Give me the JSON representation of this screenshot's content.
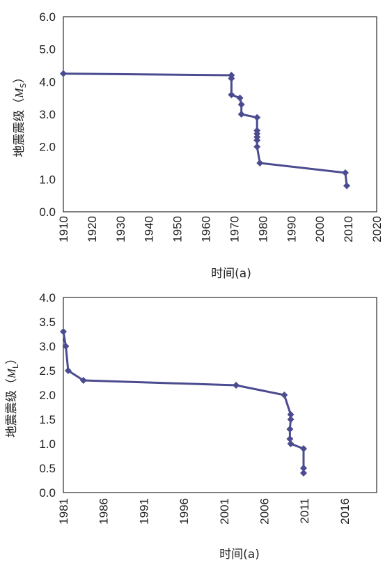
{
  "chart_data": [
    {
      "type": "line",
      "xlim": [
        1910,
        2020
      ],
      "ylim": [
        0,
        6
      ],
      "x_ticks": [
        "1910",
        "1920",
        "1930",
        "1940",
        "1950",
        "1960",
        "1970",
        "1980",
        "1990",
        "2000",
        "2010",
        "2020"
      ],
      "y_ticks": [
        "0.0",
        "1.0",
        "2.0",
        "3.0",
        "4.0",
        "5.0",
        "6.0"
      ],
      "xlabel": "时间(a)",
      "ylabel_prefix": "地震震级（",
      "ylabel_symbol": "M",
      "ylabel_sub": "S",
      "ylabel_suffix": "）",
      "marker": "diamond",
      "color": "#4b4b8f",
      "points": [
        [
          1910,
          4.25
        ],
        [
          1969,
          4.2
        ],
        [
          1969,
          4.1
        ],
        [
          1969,
          3.6
        ],
        [
          1972,
          3.5
        ],
        [
          1972.5,
          3.3
        ],
        [
          1972.5,
          3.0
        ],
        [
          1978,
          2.9
        ],
        [
          1978,
          2.5
        ],
        [
          1978,
          2.4
        ],
        [
          1978,
          2.3
        ],
        [
          1978,
          2.2
        ],
        [
          1978,
          2.0
        ],
        [
          1979,
          1.5
        ],
        [
          2009,
          1.2
        ],
        [
          2009.5,
          0.8
        ]
      ]
    },
    {
      "type": "line",
      "xlim": [
        1981,
        2020
      ],
      "ylim": [
        0,
        4
      ],
      "x_ticks": [
        "1981",
        "1986",
        "1991",
        "1996",
        "2001",
        "2006",
        "2011",
        "2016"
      ],
      "x_tick_values": [
        1981,
        1986,
        1991,
        1996,
        2001,
        2006,
        2011,
        2016
      ],
      "y_ticks": [
        "0.0",
        "0.5",
        "1.0",
        "1.5",
        "2.0",
        "2.5",
        "3.0",
        "3.5",
        "4.0"
      ],
      "xlabel": "时间(a)",
      "ylabel_prefix": "地震震级（",
      "ylabel_symbol": "M",
      "ylabel_sub": "L",
      "ylabel_suffix": "）",
      "marker": "diamond",
      "color": "#4b4b8f",
      "points": [
        [
          1981,
          3.3
        ],
        [
          1981.3,
          3.0
        ],
        [
          1981.6,
          2.5
        ],
        [
          1983.5,
          2.3
        ],
        [
          2002.5,
          2.2
        ],
        [
          2008.5,
          2.0
        ],
        [
          2009.3,
          1.6
        ],
        [
          2009.3,
          1.5
        ],
        [
          2009.2,
          1.3
        ],
        [
          2009.2,
          1.1
        ],
        [
          2009.3,
          1.0
        ],
        [
          2010.9,
          0.9
        ],
        [
          2010.9,
          0.5
        ],
        [
          2010.9,
          0.4
        ]
      ]
    }
  ]
}
